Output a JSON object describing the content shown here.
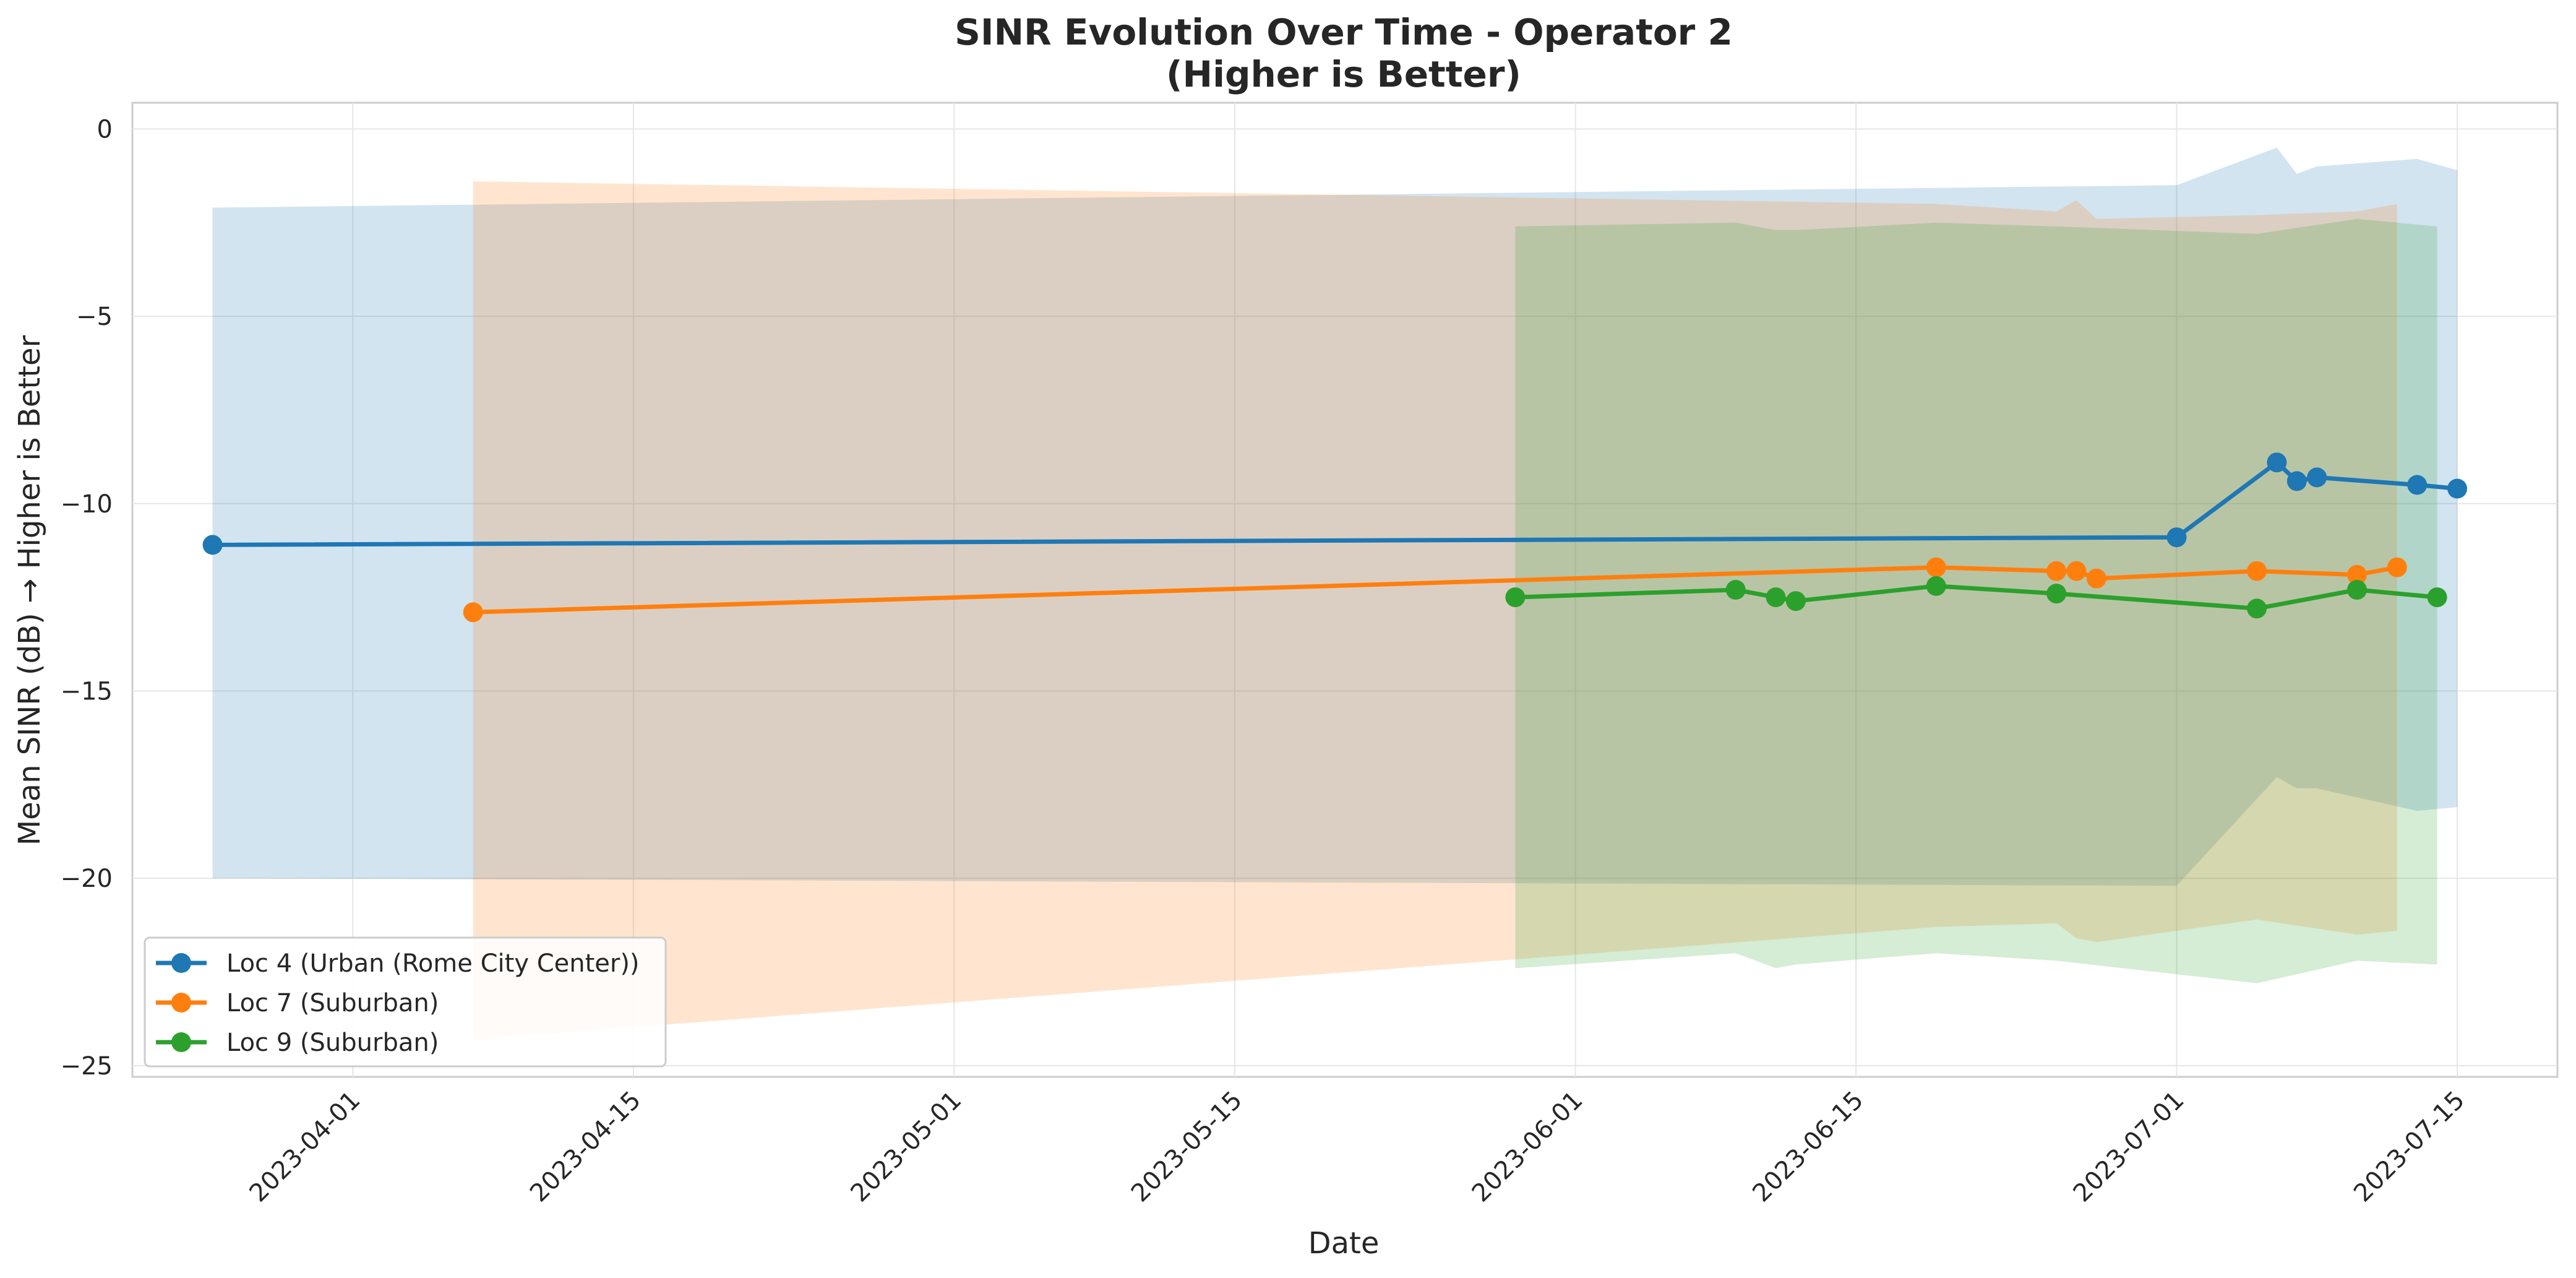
{
  "chart_data": {
    "type": "line",
    "title": [
      "SINR Evolution Over Time - Operator 2",
      "(Higher is Better)"
    ],
    "xlabel": "Date",
    "ylabel": "Mean SINR (dB) → Higher is Better",
    "xlim": [
      "2023-03-21",
      "2023-07-20"
    ],
    "ylim": [
      -25.3,
      0.7
    ],
    "x_ticks": [
      "2023-04-01",
      "2023-04-15",
      "2023-05-01",
      "2023-05-15",
      "2023-06-01",
      "2023-06-15",
      "2023-07-01",
      "2023-07-15"
    ],
    "y_ticks": [
      0,
      -5,
      -10,
      -15,
      -20,
      -25
    ],
    "grid": true,
    "legend_position": "lower-left",
    "series": [
      {
        "name": "Loc 4 (Urban (Rome City Center))",
        "color": "#1f77b4",
        "points": [
          {
            "x": "2023-03-25",
            "y": -11.1,
            "upper": -2.1,
            "lower": -20.0
          },
          {
            "x": "2023-07-01",
            "y": -10.9,
            "upper": -1.5,
            "lower": -20.2
          },
          {
            "x": "2023-07-06",
            "y": -8.9,
            "upper": -0.5,
            "lower": -17.3
          },
          {
            "x": "2023-07-07",
            "y": -9.4,
            "upper": -1.2,
            "lower": -17.6
          },
          {
            "x": "2023-07-08",
            "y": -9.3,
            "upper": -1.0,
            "lower": -17.6
          },
          {
            "x": "2023-07-13",
            "y": -9.5,
            "upper": -0.8,
            "lower": -18.2
          },
          {
            "x": "2023-07-15",
            "y": -9.6,
            "upper": -1.1,
            "lower": -18.1
          }
        ]
      },
      {
        "name": "Loc 7 (Suburban)",
        "color": "#ff7f0e",
        "points": [
          {
            "x": "2023-04-07",
            "y": -12.9,
            "upper": -1.4,
            "lower": -24.3
          },
          {
            "x": "2023-06-19",
            "y": -11.7,
            "upper": -2.0,
            "lower": -21.3
          },
          {
            "x": "2023-06-25",
            "y": -11.8,
            "upper": -2.2,
            "lower": -21.2
          },
          {
            "x": "2023-06-26",
            "y": -11.8,
            "upper": -1.9,
            "lower": -21.6
          },
          {
            "x": "2023-06-27",
            "y": -12.0,
            "upper": -2.4,
            "lower": -21.7
          },
          {
            "x": "2023-07-05",
            "y": -11.8,
            "upper": -2.3,
            "lower": -21.1
          },
          {
            "x": "2023-07-10",
            "y": -11.9,
            "upper": -2.2,
            "lower": -21.5
          },
          {
            "x": "2023-07-12",
            "y": -11.7,
            "upper": -2.0,
            "lower": -21.4
          }
        ]
      },
      {
        "name": "Loc 9 (Suburban)",
        "color": "#2ca02c",
        "points": [
          {
            "x": "2023-05-29",
            "y": -12.5,
            "upper": -2.6,
            "lower": -22.4
          },
          {
            "x": "2023-06-09",
            "y": -12.3,
            "upper": -2.5,
            "lower": -22.0
          },
          {
            "x": "2023-06-11",
            "y": -12.5,
            "upper": -2.7,
            "lower": -22.4
          },
          {
            "x": "2023-06-12",
            "y": -12.6,
            "upper": -2.7,
            "lower": -22.3
          },
          {
            "x": "2023-06-19",
            "y": -12.2,
            "upper": -2.5,
            "lower": -22.0
          },
          {
            "x": "2023-06-25",
            "y": -12.4,
            "upper": -2.6,
            "lower": -22.2
          },
          {
            "x": "2023-07-05",
            "y": -12.8,
            "upper": -2.8,
            "lower": -22.8
          },
          {
            "x": "2023-07-10",
            "y": -12.3,
            "upper": -2.4,
            "lower": -22.2
          },
          {
            "x": "2023-07-14",
            "y": -12.5,
            "upper": -2.6,
            "lower": -22.3
          }
        ]
      }
    ]
  }
}
